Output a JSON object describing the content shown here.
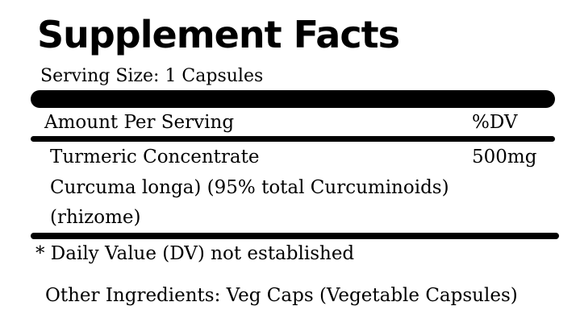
{
  "header": {
    "title": "Supplement Facts",
    "serving_size": "Serving Size: 1 Capsules"
  },
  "table": {
    "header": [
      "Amount Per Serving",
      "%DV"
    ],
    "rows": [
      [
        "Turmeric Concentrate",
        "500mg"
      ]
    ],
    "description": [
      "Curcuma longa) (95% total Curcuminoids)",
      "(rhizome)"
    ]
  },
  "footnote": "* Daily Value (DV) not established",
  "other_ingredients": "Other Ingredients: Veg Caps (Vegetable Capsules)"
}
